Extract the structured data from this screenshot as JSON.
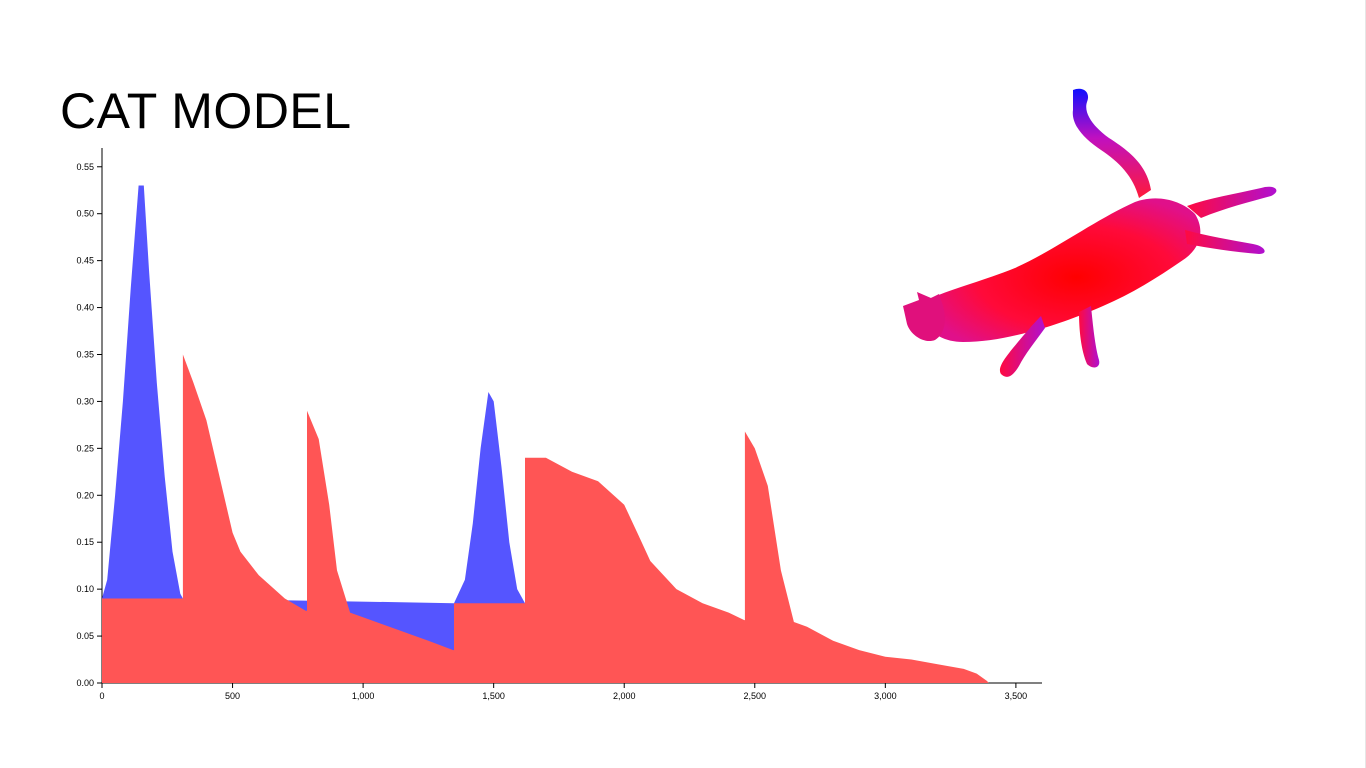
{
  "slide": {
    "title": "CAT MODEL"
  },
  "chart_data": {
    "type": "area",
    "title": "",
    "xlabel": "",
    "ylabel": "",
    "xlim": [
      0,
      3600
    ],
    "ylim": [
      0,
      0.57
    ],
    "xticks": [
      0,
      500,
      1000,
      1500,
      2000,
      2500,
      3000,
      3500
    ],
    "xtick_labels": [
      "0",
      "500",
      "1,000",
      "1,500",
      "2,000",
      "2,500",
      "3,000",
      "3,500"
    ],
    "yticks": [
      0,
      0.05,
      0.1,
      0.15,
      0.2,
      0.25,
      0.3,
      0.35,
      0.4,
      0.45,
      0.5,
      0.55
    ],
    "ytick_labels": [
      "0.00",
      "0.05",
      "0.10",
      "0.15",
      "0.20",
      "0.25",
      "0.30",
      "0.35",
      "0.40",
      "0.45",
      "0.50",
      "0.55"
    ],
    "grid": false,
    "series": [
      {
        "color": "#ff5555",
        "points": [
          [
            0,
            0.09
          ],
          [
            310,
            0.09
          ],
          [
            310,
            0.35
          ],
          [
            350,
            0.32
          ],
          [
            400,
            0.28
          ],
          [
            450,
            0.22
          ],
          [
            500,
            0.16
          ],
          [
            530,
            0.14
          ],
          [
            600,
            0.115
          ],
          [
            700,
            0.09
          ],
          [
            780,
            0.077
          ],
          [
            785,
            0.077
          ],
          [
            785,
            0.29
          ],
          [
            830,
            0.26
          ],
          [
            870,
            0.19
          ],
          [
            900,
            0.12
          ],
          [
            950,
            0.075
          ],
          [
            1050,
            0.065
          ],
          [
            1150,
            0.055
          ],
          [
            1250,
            0.045
          ],
          [
            1345,
            0.035
          ],
          [
            1348,
            0.035
          ],
          [
            1348,
            0.085
          ],
          [
            1620,
            0.085
          ],
          [
            1620,
            0.24
          ],
          [
            1700,
            0.24
          ],
          [
            1800,
            0.225
          ],
          [
            1900,
            0.215
          ],
          [
            2000,
            0.19
          ],
          [
            2050,
            0.16
          ],
          [
            2100,
            0.13
          ],
          [
            2200,
            0.1
          ],
          [
            2300,
            0.085
          ],
          [
            2400,
            0.075
          ],
          [
            2460,
            0.067
          ],
          [
            2462,
            0.067
          ],
          [
            2462,
            0.268
          ],
          [
            2500,
            0.25
          ],
          [
            2550,
            0.21
          ],
          [
            2600,
            0.12
          ],
          [
            2650,
            0.065
          ],
          [
            2700,
            0.06
          ],
          [
            2800,
            0.045
          ],
          [
            2900,
            0.035
          ],
          [
            3000,
            0.028
          ],
          [
            3100,
            0.025
          ],
          [
            3200,
            0.02
          ],
          [
            3300,
            0.015
          ],
          [
            3350,
            0.01
          ],
          [
            3390,
            0.002
          ],
          [
            3395,
            0
          ]
        ]
      },
      {
        "color": "#5555ff",
        "points": [
          [
            0,
            0.09
          ],
          [
            20,
            0.11
          ],
          [
            50,
            0.2
          ],
          [
            80,
            0.3
          ],
          [
            110,
            0.42
          ],
          [
            140,
            0.53
          ],
          [
            160,
            0.53
          ],
          [
            180,
            0.44
          ],
          [
            210,
            0.32
          ],
          [
            240,
            0.22
          ],
          [
            270,
            0.14
          ],
          [
            300,
            0.095
          ],
          [
            310,
            0.09
          ],
          [
            1348,
            0.085
          ],
          [
            1390,
            0.11
          ],
          [
            1420,
            0.17
          ],
          [
            1450,
            0.25
          ],
          [
            1480,
            0.31
          ],
          [
            1500,
            0.3
          ],
          [
            1530,
            0.23
          ],
          [
            1560,
            0.15
          ],
          [
            1590,
            0.1
          ],
          [
            1620,
            0.085
          ]
        ]
      }
    ]
  },
  "figure": {
    "gradient_colors": [
      "#ff0000",
      "#ff0066",
      "#cc00cc",
      "#0000ff"
    ]
  }
}
